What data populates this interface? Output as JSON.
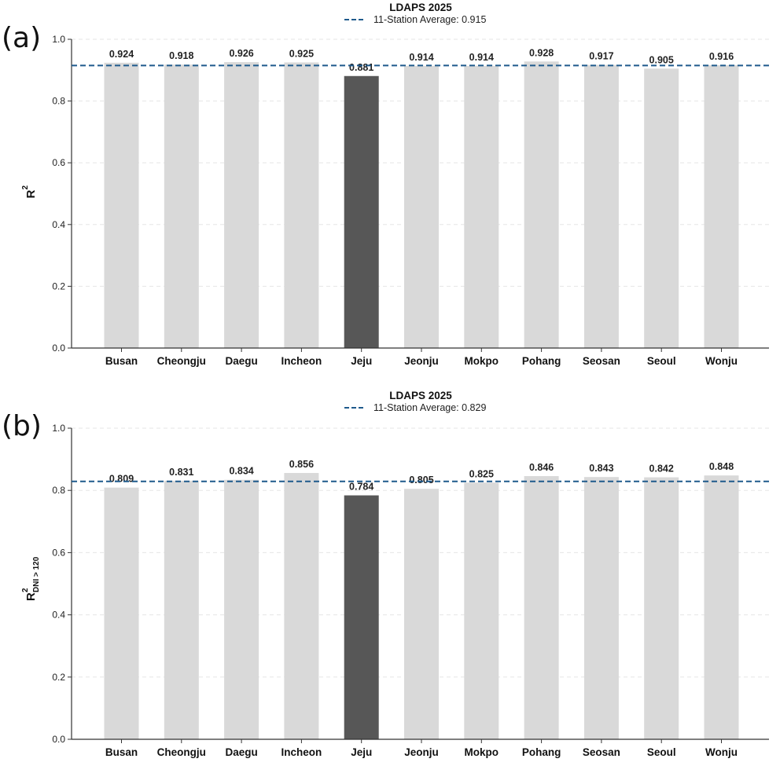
{
  "panel_letters": [
    "(a)",
    "(b)"
  ],
  "chart_data": [
    {
      "type": "bar",
      "title": "LDAPS 2025",
      "ylabel_base": "R",
      "ylabel_sup": "2",
      "ylabel_sub": "",
      "xlabel": "",
      "ylim": [
        0,
        1.0
      ],
      "yticks": [
        "0.0",
        "0.2",
        "0.4",
        "0.6",
        "0.8",
        "1.0"
      ],
      "grid": true,
      "legend_position": "top-center",
      "categories": [
        "Busan",
        "Cheongju",
        "Daegu",
        "Incheon",
        "Jeju",
        "Jeonju",
        "Mokpo",
        "Pohang",
        "Seosan",
        "Seoul",
        "Wonju"
      ],
      "values": [
        0.924,
        0.918,
        0.926,
        0.925,
        0.881,
        0.914,
        0.914,
        0.928,
        0.917,
        0.905,
        0.916
      ],
      "value_labels": [
        "0.924",
        "0.918",
        "0.926",
        "0.925",
        "0.881",
        "0.914",
        "0.914",
        "0.928",
        "0.917",
        "0.905",
        "0.916"
      ],
      "highlight_index": 4,
      "bar_color": "#d9d9d9",
      "highlight_color": "#575757",
      "average": {
        "value": 0.915,
        "label": "11-Station Average: 0.915",
        "color": "#1f5a8c"
      }
    },
    {
      "type": "bar",
      "title": "LDAPS 2025",
      "ylabel_base": "R",
      "ylabel_sup": "2",
      "ylabel_sub": "DNI > 120",
      "xlabel": "",
      "ylim": [
        0,
        1.0
      ],
      "yticks": [
        "0.0",
        "0.2",
        "0.4",
        "0.6",
        "0.8",
        "1.0"
      ],
      "grid": true,
      "legend_position": "top-center",
      "categories": [
        "Busan",
        "Cheongju",
        "Daegu",
        "Incheon",
        "Jeju",
        "Jeonju",
        "Mokpo",
        "Pohang",
        "Seosan",
        "Seoul",
        "Wonju"
      ],
      "values": [
        0.809,
        0.831,
        0.834,
        0.856,
        0.784,
        0.805,
        0.825,
        0.846,
        0.843,
        0.842,
        0.848
      ],
      "value_labels": [
        "0.809",
        "0.831",
        "0.834",
        "0.856",
        "0.784",
        "0.805",
        "0.825",
        "0.846",
        "0.843",
        "0.842",
        "0.848"
      ],
      "highlight_index": 4,
      "bar_color": "#d9d9d9",
      "highlight_color": "#575757",
      "average": {
        "value": 0.829,
        "label": "11-Station Average: 0.829",
        "color": "#1f5a8c"
      }
    }
  ]
}
